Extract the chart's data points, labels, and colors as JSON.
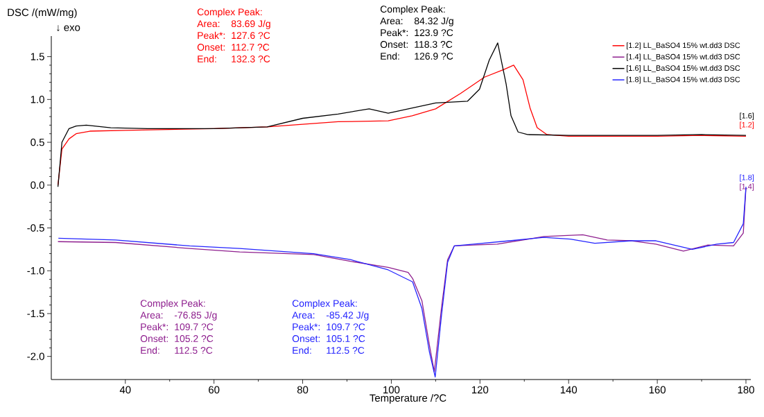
{
  "chart_data": {
    "type": "line",
    "xlabel": "Temperature /?C",
    "ylabel": "DSC /(mW/mg)",
    "xlim": [
      23.3,
      181.1
    ],
    "ylim": [
      -2.27,
      1.74
    ],
    "xticks": [
      40,
      60,
      80,
      100,
      120,
      140,
      160,
      180
    ],
    "yticks": [
      {
        "value": -2.0,
        "label": "-2.0"
      },
      {
        "value": -1.5,
        "label": "-1.5"
      },
      {
        "value": -1.0,
        "label": "-1.0"
      },
      {
        "value": -0.5,
        "label": "-0.5"
      },
      {
        "value": 0.0,
        "label": "0.0"
      },
      {
        "value": 0.5,
        "label": "0.5"
      },
      {
        "value": 1.0,
        "label": "1.0"
      },
      {
        "value": 1.5,
        "label": "1.5"
      }
    ],
    "legend": "top right",
    "series": [
      {
        "name": "[1.2] LL_BaSO4 15% wt.dd3 DSC",
        "color": "#ff0000",
        "x": [
          24.8,
          25.7,
          27.3,
          28.9,
          32,
          40,
          50,
          60,
          72,
          80,
          88,
          99.3,
          104.7,
          110,
          115.6,
          121,
          125.4,
          127.6,
          129.7,
          131.3,
          132.9,
          135.1,
          140,
          150,
          160,
          170,
          180
        ],
        "values": [
          0.0,
          0.42,
          0.54,
          0.6,
          0.63,
          0.64,
          0.65,
          0.66,
          0.68,
          0.71,
          0.74,
          0.75,
          0.81,
          0.89,
          1.07,
          1.26,
          1.35,
          1.4,
          1.23,
          0.9,
          0.67,
          0.59,
          0.57,
          0.57,
          0.57,
          0.58,
          0.57
        ]
      },
      {
        "name": "[1.4] LL_BaSO4 15% wt.dd3 DSC",
        "color": "#8e1e8e",
        "x": [
          24.8,
          37.8,
          54.5,
          65.8,
          76.9,
          82.5,
          90.8,
          99.3,
          103.8,
          104.8,
          106.9,
          108.6,
          109.7,
          111.3,
          112.7,
          114.2,
          118.5,
          123.9,
          134.4,
          143.2,
          148.7,
          154.2,
          159.7,
          165.9,
          171.4,
          177.2,
          179.4,
          180
        ],
        "values": [
          -0.66,
          -0.67,
          -0.74,
          -0.78,
          -0.8,
          -0.81,
          -0.89,
          -0.96,
          -1.02,
          -1.09,
          -1.35,
          -1.87,
          -2.18,
          -1.44,
          -0.87,
          -0.71,
          -0.7,
          -0.69,
          -0.6,
          -0.58,
          -0.64,
          -0.65,
          -0.69,
          -0.77,
          -0.7,
          -0.71,
          -0.56,
          -0.03
        ]
      },
      {
        "name": "[1.6] LL_BaSO4 15% wt.dd3 DSC",
        "color": "#000000",
        "x": [
          24.8,
          25.7,
          27.3,
          28.9,
          31.2,
          36.7,
          45,
          60,
          72,
          80,
          88,
          95,
          99.3,
          110,
          117.2,
          119.9,
          122.1,
          124,
          125.9,
          127,
          128.6,
          130.7,
          140,
          150,
          160,
          170,
          180
        ],
        "values": [
          -0.02,
          0.5,
          0.66,
          0.69,
          0.7,
          0.67,
          0.66,
          0.66,
          0.68,
          0.78,
          0.83,
          0.89,
          0.84,
          0.96,
          0.98,
          1.12,
          1.46,
          1.66,
          1.18,
          0.81,
          0.62,
          0.59,
          0.58,
          0.58,
          0.58,
          0.59,
          0.58
        ]
      },
      {
        "name": "[1.8] LL_BaSO4 15% wt.dd3 DSC",
        "color": "#2424ff",
        "x": [
          24.9,
          37.8,
          54.5,
          65.8,
          76.9,
          82.5,
          90.8,
          99.3,
          104.8,
          106.9,
          108.6,
          109.9,
          111.3,
          112.7,
          114.2,
          118.5,
          126.7,
          134.4,
          140.4,
          145.9,
          154.2,
          159.7,
          167.9,
          173.4,
          177.2,
          179.4,
          180
        ],
        "values": [
          -0.62,
          -0.64,
          -0.71,
          -0.74,
          -0.78,
          -0.8,
          -0.87,
          -0.99,
          -1.13,
          -1.44,
          -1.95,
          -2.24,
          -1.53,
          -0.9,
          -0.71,
          -0.69,
          -0.65,
          -0.61,
          -0.63,
          -0.68,
          -0.65,
          -0.65,
          -0.75,
          -0.69,
          -0.67,
          -0.45,
          -0.02
        ]
      }
    ],
    "annotations": [
      "Complex Peak:",
      "Area:",
      "83.69 J/g",
      "Peak*:",
      "127.6 ?C",
      "Onset:",
      "112.7 ?C",
      "End:",
      "132.3 ?C",
      "Complex Peak:",
      "Area:",
      "84.32 J/g",
      "Peak*:",
      "123.9 ?C",
      "Onset:",
      "118.3 ?C",
      "End:",
      "126.9 ?C",
      "Complex Peak:",
      "Area:",
      "-76.85 J/g",
      "Peak*:",
      "109.7 ?C",
      "Onset:",
      "105.2 ?C",
      "End:",
      "112.5 ?C",
      "Complex Peak:",
      "Area:",
      "-85.42 J/g",
      "Peak*:",
      "109.7 ?C",
      "Onset:",
      "105.1 ?C",
      "End:",
      "112.5 ?C",
      "↓ exo",
      "[1.2]",
      "[1.6]",
      "[1.8]",
      "[1.4]"
    ]
  }
}
